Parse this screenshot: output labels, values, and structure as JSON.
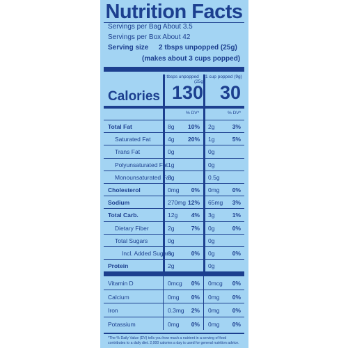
{
  "title": "Nutrition Facts",
  "servings_per_bag": "Servings per Bag About 3.5",
  "servings_per_box": "Servings per Box About 42",
  "serving_size_label": "Serving size",
  "serving_size_value": "2 tbsps unpopped (25g)",
  "serving_size_popped": "(makes about 3 cups popped)",
  "col1_header": "2 tbsps unpopped",
  "col1_header_grams": "(25g)",
  "col2_header": "1 cup popped (9g)",
  "calories_label": "Calories",
  "calories_col1": "130",
  "calories_col2": "30",
  "dv_header": "% DV*",
  "rows": [
    {
      "name": "Total Fat",
      "bold": true,
      "a": "8g",
      "ap": "10%",
      "b": "2g",
      "bp": "3%"
    },
    {
      "name": "Saturated Fat",
      "bold": false,
      "a": "4g",
      "ap": "20%",
      "b": "1g",
      "bp": "5%"
    },
    {
      "name": "Trans Fat",
      "bold": false,
      "a": "0g",
      "ap": "",
      "b": "0g",
      "bp": ""
    },
    {
      "name": "Polyunsaturated Fat",
      "bold": false,
      "a": "1g",
      "ap": "",
      "b": "0g",
      "bp": ""
    },
    {
      "name": "Monounsaturated Fat",
      "bold": false,
      "a": "3g",
      "ap": "",
      "b": "0.5g",
      "bp": ""
    },
    {
      "name": "Cholesterol",
      "bold": true,
      "a": "0mg",
      "ap": "0%",
      "b": "0mg",
      "bp": "0%"
    },
    {
      "name": "Sodium",
      "bold": true,
      "a": "270mg",
      "ap": "12%",
      "b": "65mg",
      "bp": "3%"
    },
    {
      "name": "Total Carb.",
      "bold": true,
      "a": "12g",
      "ap": "4%",
      "b": "3g",
      "bp": "1%"
    },
    {
      "name": "Dietary Fiber",
      "bold": false,
      "a": "2g",
      "ap": "7%",
      "b": "0g",
      "bp": "0%"
    },
    {
      "name": "Total Sugars",
      "bold": false,
      "a": "0g",
      "ap": "",
      "b": "0g",
      "bp": ""
    },
    {
      "name": "Incl. Added Sugars",
      "bold": false,
      "a": "0g",
      "ap": "0%",
      "b": "0g",
      "bp": "0%"
    },
    {
      "name": "Protein",
      "bold": true,
      "a": "2g",
      "ap": "",
      "b": "0g",
      "bp": ""
    },
    {
      "name": "Vitamin D",
      "bold": false,
      "a": "0mcg",
      "ap": "0%",
      "b": "0mcg",
      "bp": "0%"
    },
    {
      "name": "Calcium",
      "bold": false,
      "a": "0mg",
      "ap": "0%",
      "b": "0mg",
      "bp": "0%"
    },
    {
      "name": "Iron",
      "bold": false,
      "a": "0.3mg",
      "ap": "2%",
      "b": "0mg",
      "bp": "0%"
    },
    {
      "name": "Potassium",
      "bold": false,
      "a": "0mg",
      "ap": "0%",
      "b": "0mg",
      "bp": "0%"
    }
  ],
  "footnote_line1": "*The % Daily Value (DV) tells you how much a nutrient in a serving of food",
  "footnote_line2": "contributes to a daily diet. 2,000 calories a day is used for general nutrition advice.",
  "colors": {
    "background": "#a3d4f3",
    "ink": "#1c3f8f"
  }
}
